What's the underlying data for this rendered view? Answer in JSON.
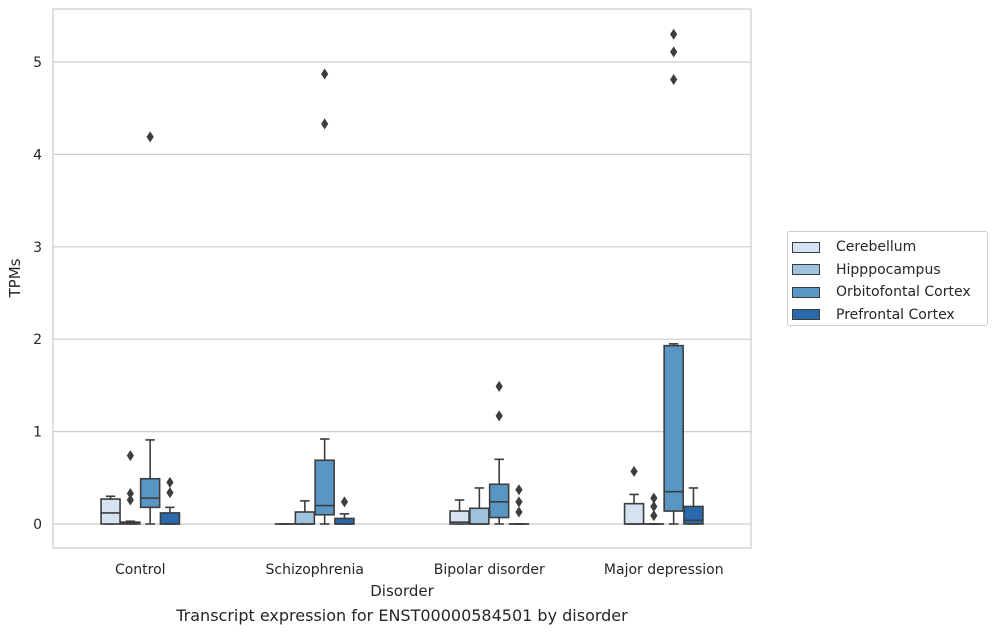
{
  "chart_data": {
    "type": "box",
    "title": "Transcript expression for ENST00000584501 by disorder",
    "xlabel": "Disorder",
    "ylabel": "TPMs",
    "ylim": [
      -0.26,
      5.6
    ],
    "yticks": [
      0,
      1,
      2,
      3,
      4,
      5
    ],
    "grid": true,
    "legend_position": "right",
    "categories": [
      "Control",
      "Schizophrenia",
      "Bipolar disorder",
      "Major depression"
    ],
    "series": [
      {
        "name": "Cerebellum",
        "color": "#d4e2f1",
        "boxes": [
          {
            "q1": 0.0,
            "median": 0.12,
            "q3": 0.27,
            "whisker_low": 0.0,
            "whisker_high": 0.3,
            "outliers": []
          },
          {
            "q1": 0.0,
            "median": 0.0,
            "q3": 0.0,
            "whisker_low": 0.0,
            "whisker_high": 0.0,
            "outliers": []
          },
          {
            "q1": 0.0,
            "median": 0.02,
            "q3": 0.14,
            "whisker_low": 0.0,
            "whisker_high": 0.26,
            "outliers": []
          },
          {
            "q1": 0.0,
            "median": 0.0,
            "q3": 0.22,
            "whisker_low": 0.0,
            "whisker_high": 0.32,
            "outliers": [
              0.57
            ]
          }
        ]
      },
      {
        "name": "Hipppocampus",
        "color": "#9ec4de",
        "boxes": [
          {
            "q1": 0.0,
            "median": 0.01,
            "q3": 0.02,
            "whisker_low": 0.0,
            "whisker_high": 0.03,
            "outliers": [
              0.26,
              0.33,
              0.74
            ]
          },
          {
            "q1": 0.0,
            "median": 0.0,
            "q3": 0.13,
            "whisker_low": 0.0,
            "whisker_high": 0.25,
            "outliers": []
          },
          {
            "q1": 0.0,
            "median": 0.0,
            "q3": 0.17,
            "whisker_low": 0.0,
            "whisker_high": 0.39,
            "outliers": []
          },
          {
            "q1": 0.0,
            "median": 0.0,
            "q3": 0.0,
            "whisker_low": 0.0,
            "whisker_high": 0.0,
            "outliers": [
              0.09,
              0.19,
              0.28
            ]
          }
        ]
      },
      {
        "name": "Orbitofontal Cortex",
        "color": "#5a96c4",
        "boxes": [
          {
            "q1": 0.18,
            "median": 0.28,
            "q3": 0.49,
            "whisker_low": 0.0,
            "whisker_high": 0.91,
            "outliers": [
              4.19
            ]
          },
          {
            "q1": 0.1,
            "median": 0.2,
            "q3": 0.69,
            "whisker_low": 0.0,
            "whisker_high": 0.92,
            "outliers": [
              4.33,
              4.87
            ]
          },
          {
            "q1": 0.07,
            "median": 0.24,
            "q3": 0.43,
            "whisker_low": 0.0,
            "whisker_high": 0.7,
            "outliers": [
              1.17,
              1.49
            ]
          },
          {
            "q1": 0.14,
            "median": 0.35,
            "q3": 1.93,
            "whisker_low": 0.0,
            "whisker_high": 1.95,
            "outliers": [
              4.81,
              5.11,
              5.3
            ]
          }
        ]
      },
      {
        "name": "Prefrontal Cortex",
        "color": "#2a69ab",
        "boxes": [
          {
            "q1": 0.0,
            "median": 0.0,
            "q3": 0.12,
            "whisker_low": 0.0,
            "whisker_high": 0.18,
            "outliers": [
              0.34,
              0.45
            ]
          },
          {
            "q1": 0.0,
            "median": 0.0,
            "q3": 0.06,
            "whisker_low": 0.0,
            "whisker_high": 0.11,
            "outliers": [
              0.24
            ]
          },
          {
            "q1": 0.0,
            "median": 0.0,
            "q3": 0.0,
            "whisker_low": 0.0,
            "whisker_high": 0.0,
            "outliers": [
              0.13,
              0.24,
              0.37
            ]
          },
          {
            "q1": 0.0,
            "median": 0.04,
            "q3": 0.19,
            "whisker_low": 0.0,
            "whisker_high": 0.39,
            "outliers": []
          }
        ]
      }
    ]
  }
}
